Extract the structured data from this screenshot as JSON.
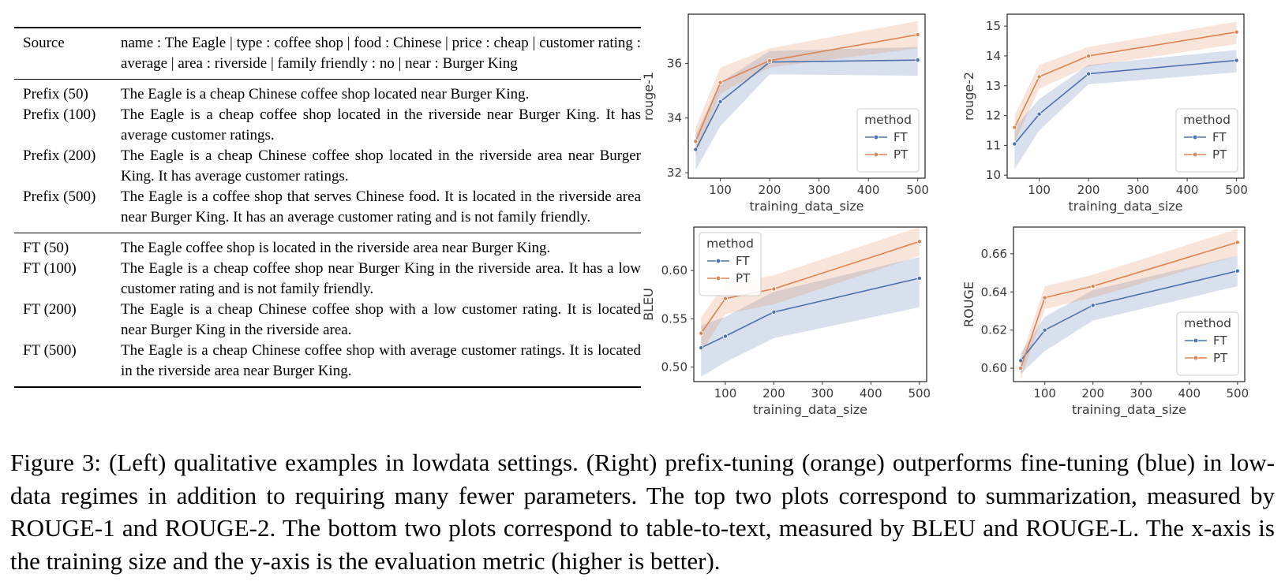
{
  "table": {
    "header": {
      "label": "Source",
      "text": "name : The Eagle | type : coffee shop | food : Chinese | price : cheap | customer rating : average | area : riverside | family friendly : no | near : Burger King"
    },
    "prefix_rows": [
      {
        "label": "Prefix (50)",
        "text": "The Eagle is a cheap Chinese coffee shop located near Burger King."
      },
      {
        "label": "Prefix (100)",
        "text": "The Eagle is a cheap coffee shop located in the riverside near Burger King. It has average customer ratings."
      },
      {
        "label": "Prefix (200)",
        "text": "The Eagle is a cheap Chinese coffee shop located in the riverside area near Burger King. It has average customer ratings."
      },
      {
        "label": "Prefix (500)",
        "text": "The Eagle is a coffee shop that serves Chinese food. It is located in the riverside area near Burger King.  It has an average customer rating and is not family friendly."
      }
    ],
    "ft_rows": [
      {
        "label": "FT (50)",
        "text": "The Eagle coffee shop is located in the riverside area near Burger King."
      },
      {
        "label": "FT (100)",
        "text": "The Eagle is a cheap coffee shop near Burger King in the riverside area. It has a low customer rating and is not family friendly."
      },
      {
        "label": "FT (200)",
        "text": "The Eagle is a cheap Chinese coffee shop with a low customer rating.  It is located near Burger King in the riverside area."
      },
      {
        "label": "FT (500)",
        "text": "The Eagle is a cheap Chinese coffee shop with average customer ratings. It is located in the riverside area near Burger King."
      }
    ]
  },
  "colors": {
    "FT": "#4c72b0",
    "PT": "#dd8452"
  },
  "chart_data": [
    {
      "id": "rouge1",
      "type": "line",
      "xlabel": "training_data_size",
      "ylabel": "rouge-1",
      "x": [
        50,
        100,
        200,
        500
      ],
      "xticks": [
        100,
        200,
        300,
        400,
        500
      ],
      "xlim": [
        35,
        515
      ],
      "ylim": [
        31.8,
        37.8
      ],
      "yticks": [
        32,
        34,
        36
      ],
      "grid": false,
      "legend": {
        "title": "method",
        "entries": [
          "FT",
          "PT"
        ],
        "position": "lower right"
      },
      "series": [
        {
          "name": "FT",
          "values": [
            32.85,
            34.6,
            36.05,
            36.12
          ],
          "ci_low": [
            32.1,
            33.7,
            35.6,
            35.55
          ],
          "ci_high": [
            33.4,
            35.3,
            36.45,
            36.6
          ]
        },
        {
          "name": "PT",
          "values": [
            33.15,
            35.3,
            36.1,
            37.05
          ],
          "ci_low": [
            32.6,
            34.9,
            35.85,
            36.55
          ],
          "ci_high": [
            33.65,
            35.85,
            36.55,
            37.55
          ]
        }
      ]
    },
    {
      "id": "rouge2",
      "type": "line",
      "xlabel": "training_data_size",
      "ylabel": "rouge-2",
      "x": [
        50,
        100,
        200,
        500
      ],
      "xticks": [
        100,
        200,
        300,
        400,
        500
      ],
      "xlim": [
        35,
        515
      ],
      "ylim": [
        9.9,
        15.4
      ],
      "yticks": [
        10,
        11,
        12,
        13,
        14,
        15
      ],
      "grid": false,
      "legend": {
        "title": "method",
        "entries": [
          "FT",
          "PT"
        ],
        "position": "lower right"
      },
      "series": [
        {
          "name": "FT",
          "values": [
            11.05,
            12.05,
            13.4,
            13.85
          ],
          "ci_low": [
            10.2,
            11.5,
            13.05,
            13.45
          ],
          "ci_high": [
            11.6,
            12.55,
            13.7,
            14.2
          ]
        },
        {
          "name": "PT",
          "values": [
            11.6,
            13.3,
            14.0,
            14.8
          ],
          "ci_low": [
            11.1,
            12.9,
            13.65,
            14.4
          ],
          "ci_high": [
            12.0,
            13.7,
            14.3,
            15.15
          ]
        }
      ]
    },
    {
      "id": "bleu",
      "type": "line",
      "xlabel": "training_data_size",
      "ylabel": "BLEU",
      "x": [
        50,
        100,
        200,
        500
      ],
      "xticks": [
        100,
        200,
        300,
        400,
        500
      ],
      "xlim": [
        35,
        515
      ],
      "ylim": [
        0.485,
        0.645
      ],
      "yticks": [
        0.5,
        0.55,
        0.6
      ],
      "ytick_labels": [
        "0.50",
        "0.55",
        "0.60"
      ],
      "grid": false,
      "legend": {
        "title": "method",
        "entries": [
          "FT",
          "PT"
        ],
        "position": "upper left"
      },
      "series": [
        {
          "name": "FT",
          "values": [
            0.52,
            0.532,
            0.557,
            0.592
          ],
          "ci_low": [
            0.49,
            0.505,
            0.53,
            0.562
          ],
          "ci_high": [
            0.543,
            0.552,
            0.578,
            0.614
          ]
        },
        {
          "name": "PT",
          "values": [
            0.535,
            0.571,
            0.581,
            0.63
          ],
          "ci_low": [
            0.515,
            0.555,
            0.565,
            0.615
          ],
          "ci_high": [
            0.552,
            0.586,
            0.595,
            0.645
          ]
        }
      ]
    },
    {
      "id": "rougeL",
      "type": "line",
      "xlabel": "training_data_size",
      "ylabel": "ROUGE",
      "x": [
        50,
        100,
        200,
        500
      ],
      "xticks": [
        100,
        200,
        300,
        400,
        500
      ],
      "xlim": [
        35,
        515
      ],
      "ylim": [
        0.593,
        0.674
      ],
      "yticks": [
        0.6,
        0.62,
        0.64,
        0.66
      ],
      "ytick_labels": [
        "0.60",
        "0.62",
        "0.64",
        "0.66"
      ],
      "grid": false,
      "legend": {
        "title": "method",
        "entries": [
          "FT",
          "PT"
        ],
        "position": "lower right"
      },
      "series": [
        {
          "name": "FT",
          "values": [
            0.604,
            0.62,
            0.633,
            0.651
          ],
          "ci_low": [
            0.597,
            0.609,
            0.625,
            0.643
          ],
          "ci_high": [
            0.608,
            0.627,
            0.641,
            0.659
          ]
        },
        {
          "name": "PT",
          "values": [
            0.6,
            0.637,
            0.643,
            0.666
          ],
          "ci_low": [
            0.594,
            0.631,
            0.637,
            0.659
          ],
          "ci_high": [
            0.605,
            0.643,
            0.649,
            0.673
          ]
        }
      ]
    }
  ],
  "caption": "Figure 3:  (Left) qualitative examples in lowdata settings. (Right) prefix-tuning (orange) outperforms fine-tuning (blue) in low-data regimes in addition to requiring many fewer parameters. The top two plots correspond to summarization, measured by ROUGE-1 and ROUGE-2. The bottom two plots correspond to table-to-text, measured by BLEU and ROUGE-L. The x-axis is the training size and the y-axis is the evaluation metric (higher is better)."
}
